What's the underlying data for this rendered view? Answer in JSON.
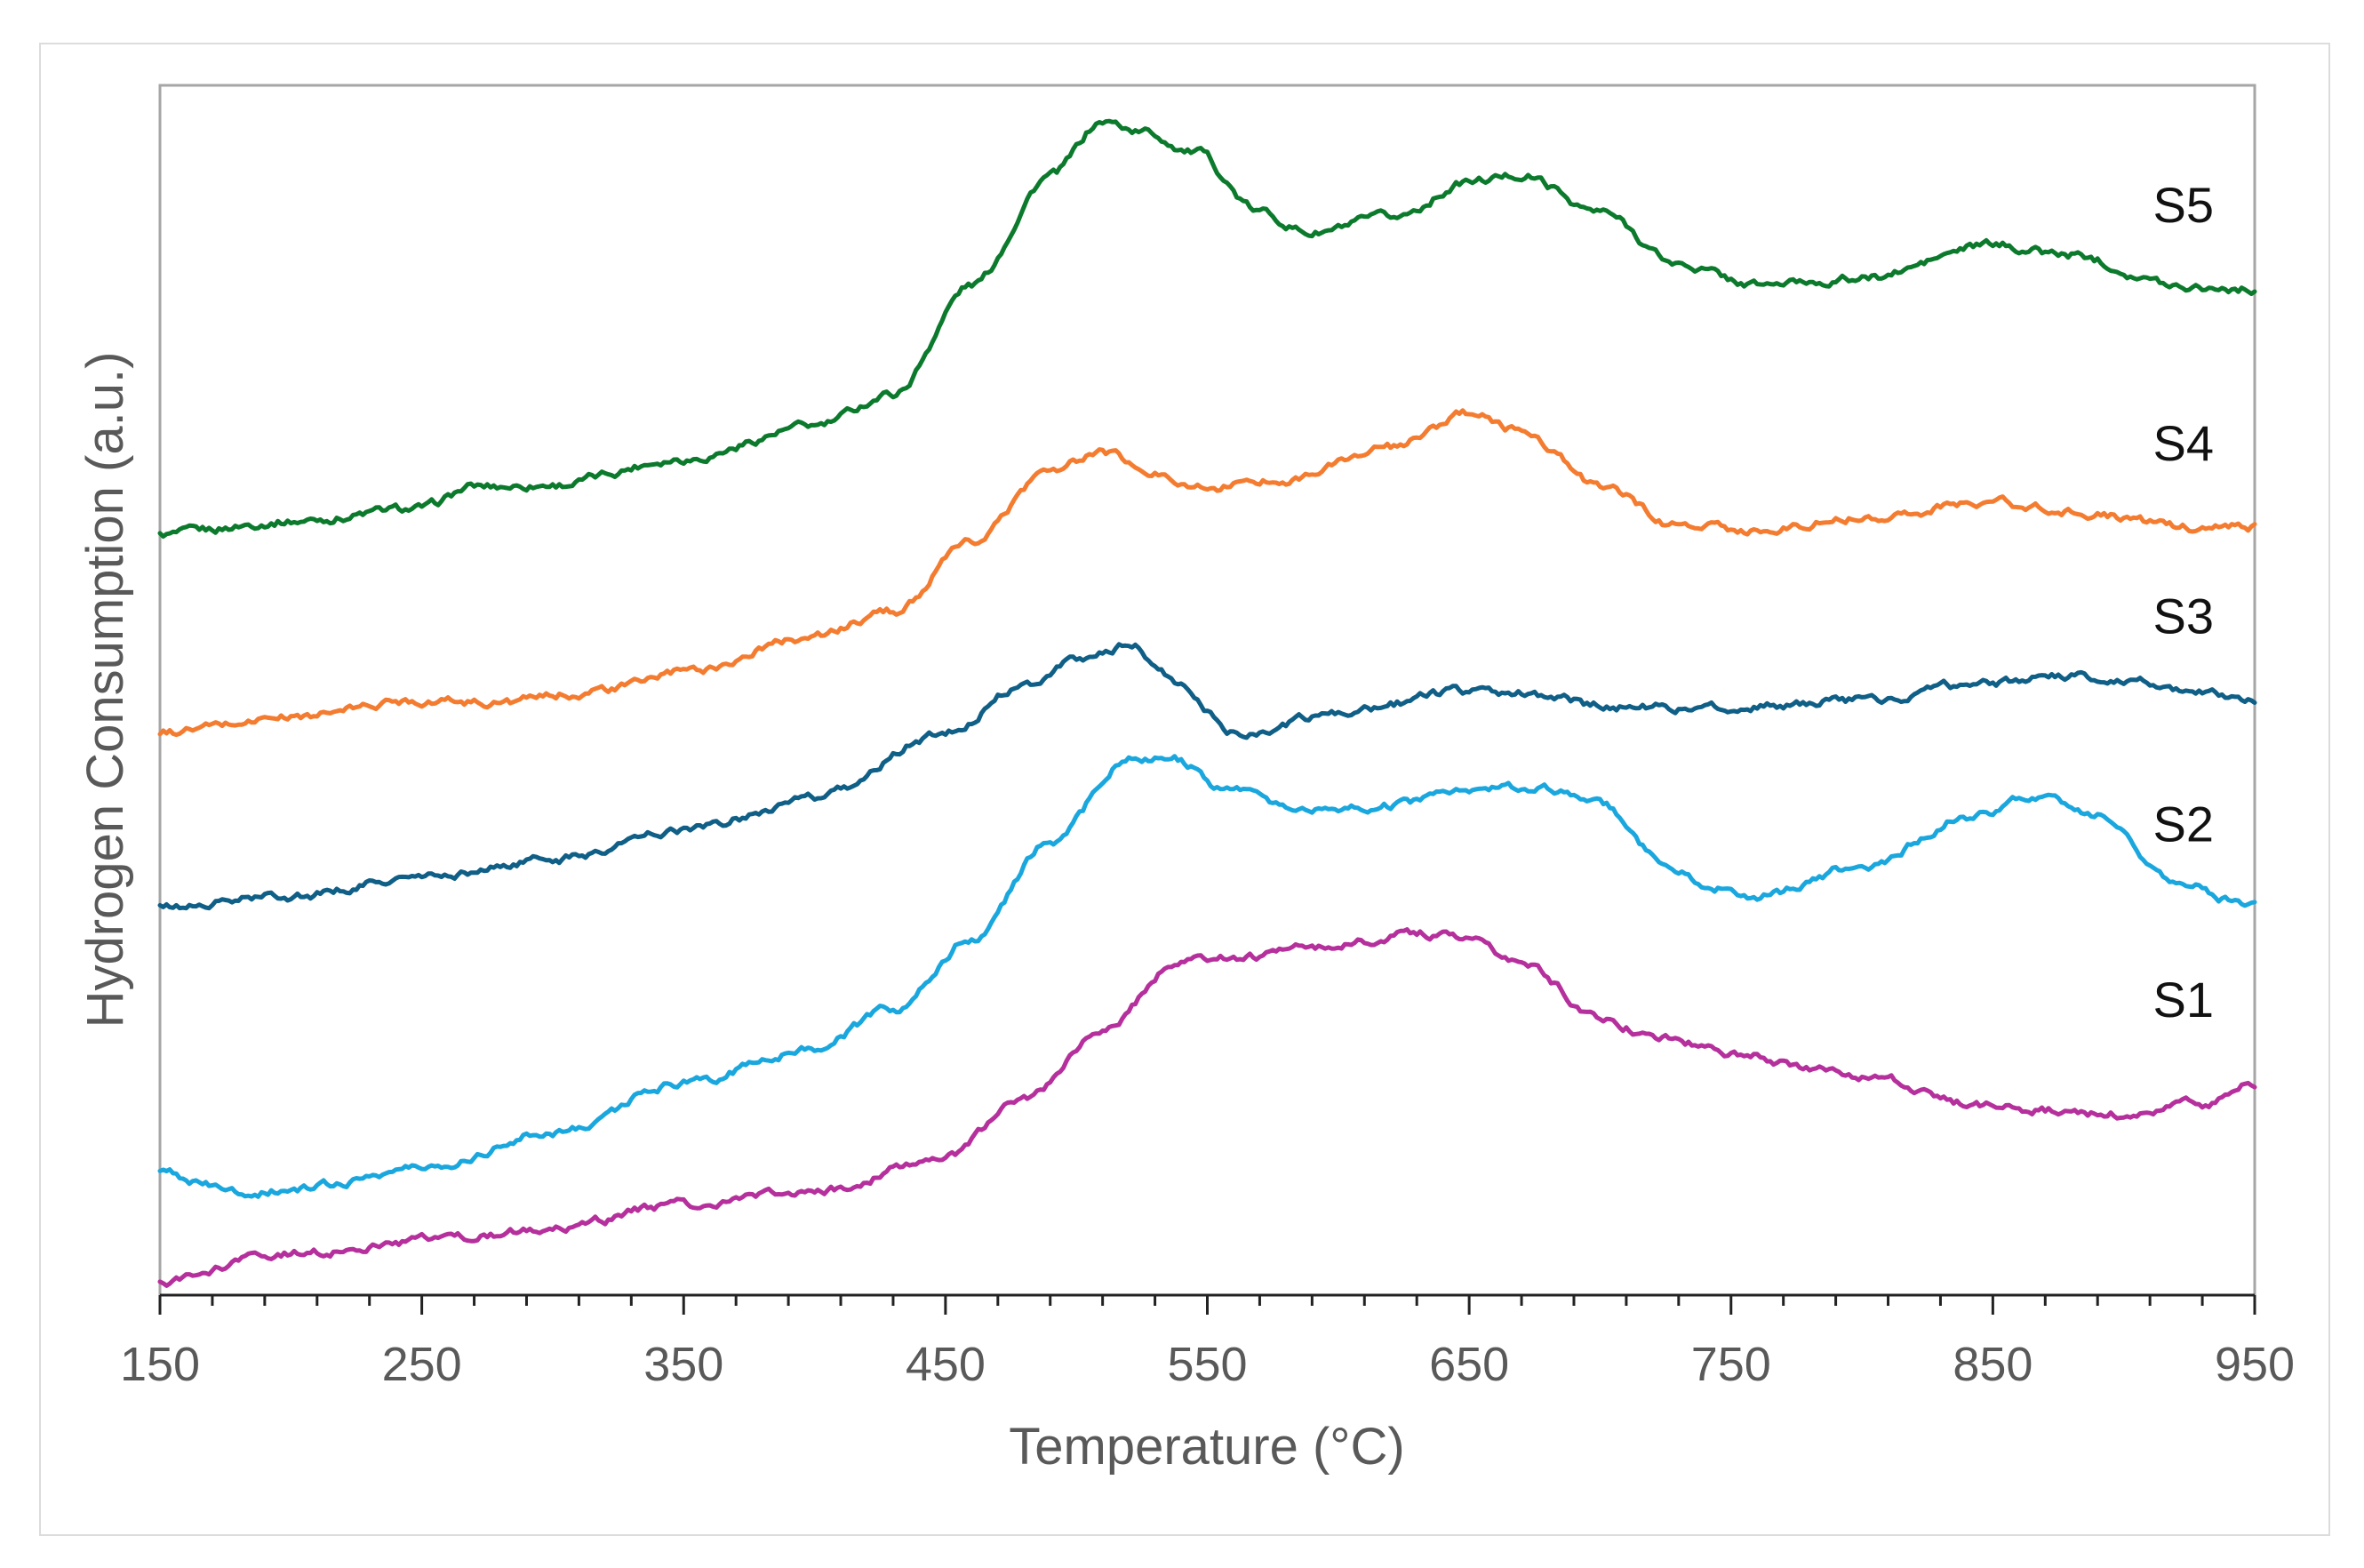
{
  "chart_data": {
    "type": "line",
    "title": "",
    "xlabel": "Temperature (°C)",
    "ylabel": "Hydrogen Consumption (a.u.)",
    "xlim": [
      150,
      950
    ],
    "ylim": [
      0,
      100
    ],
    "x_ticks": [
      150,
      250,
      350,
      450,
      550,
      650,
      750,
      850,
      950
    ],
    "grid": false,
    "legend": "inline-right",
    "series": [
      {
        "name": "S5",
        "color": "#0c7a2c",
        "x": [
          150,
          200,
          250,
          270,
          300,
          350,
          400,
          430,
          460,
          490,
          510,
          525,
          545,
          570,
          590,
          620,
          650,
          670,
          700,
          730,
          760,
          800,
          850,
          880,
          920,
          950
        ],
        "y": [
          62.8,
          64.0,
          65.0,
          66.8,
          67.0,
          69.2,
          71.8,
          74.5,
          83.5,
          92.5,
          97.0,
          96.2,
          94.5,
          89.5,
          87.8,
          89.0,
          92.0,
          92.6,
          89.5,
          85.2,
          83.5,
          84.0,
          86.8,
          86.0,
          83.5,
          83.2
        ]
      },
      {
        "name": "S4",
        "color": "#f47c30",
        "x": [
          150,
          200,
          250,
          280,
          320,
          350,
          400,
          430,
          460,
          490,
          510,
          530,
          550,
          580,
          620,
          650,
          670,
          700,
          730,
          760,
          800,
          850,
          880,
          920,
          950
        ],
        "y": [
          46.5,
          47.8,
          49.2,
          49.0,
          50.0,
          51.5,
          54.5,
          56.5,
          62.2,
          68.2,
          69.6,
          67.8,
          66.8,
          67.5,
          70.0,
          72.8,
          71.5,
          66.8,
          63.6,
          63.2,
          64.4,
          65.5,
          64.8,
          63.5,
          63.5
        ]
      },
      {
        "name": "S3",
        "color": "#0f5f87",
        "x": [
          150,
          200,
          250,
          300,
          350,
          400,
          450,
          480,
          500,
          520,
          540,
          560,
          600,
          650,
          680,
          700,
          750,
          800,
          850,
          870,
          900,
          950
        ],
        "y": [
          32.0,
          33.0,
          34.5,
          36.0,
          38.5,
          41.0,
          46.5,
          50.5,
          52.5,
          53.8,
          50.5,
          46.5,
          48.0,
          50.0,
          49.6,
          48.7,
          48.5,
          49.2,
          50.6,
          51.2,
          50.8,
          49.2
        ]
      },
      {
        "name": "S2",
        "color": "#1aa7de",
        "x": [
          150,
          180,
          200,
          250,
          300,
          350,
          400,
          430,
          460,
          490,
          520,
          535,
          560,
          590,
          620,
          650,
          680,
          700,
          730,
          760,
          800,
          840,
          870,
          890,
          920,
          950
        ],
        "y": [
          10.0,
          8.5,
          8.7,
          10.5,
          13.5,
          17.5,
          20.5,
          23.5,
          29.5,
          37.5,
          44.2,
          44.5,
          41.5,
          40.0,
          40.5,
          42.0,
          41.8,
          40.5,
          34.5,
          33.0,
          35.5,
          39.5,
          41.5,
          39.5,
          34.5,
          32.0
        ]
      },
      {
        "name": "S1",
        "color": "#b5309c",
        "x": [
          150,
          200,
          250,
          300,
          350,
          400,
          450,
          480,
          510,
          540,
          570,
          600,
          630,
          650,
          670,
          700,
          720,
          750,
          800,
          850,
          900,
          930,
          950
        ],
        "y": [
          1.0,
          3.5,
          4.5,
          5.5,
          7.5,
          8.5,
          11.5,
          16.0,
          22.0,
          27.5,
          28.0,
          29.0,
          29.8,
          29.5,
          27.5,
          23.0,
          21.5,
          20.0,
          18.0,
          15.5,
          15.0,
          15.8,
          17.5
        ]
      }
    ]
  }
}
